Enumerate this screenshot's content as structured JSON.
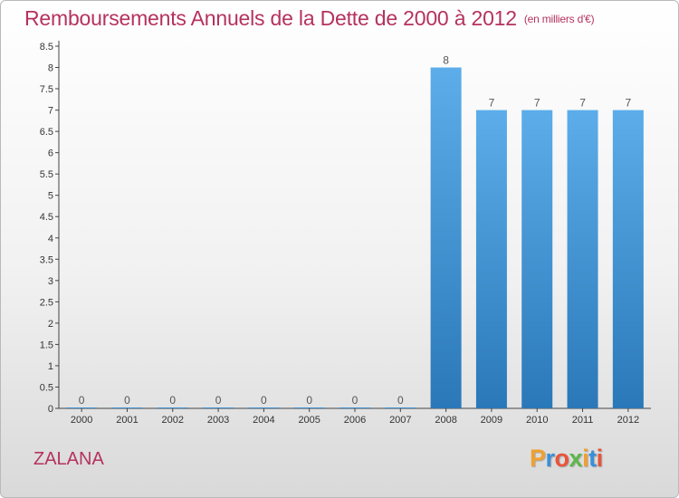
{
  "title": "Remboursements Annuels de la Dette de 2000 à 2012",
  "unit": "(en milliers d'€)",
  "place": "ZALANA",
  "logo": {
    "letters": [
      "P",
      "r",
      "o",
      "x",
      "i",
      "t",
      "i"
    ],
    "colors": [
      "#f0a030",
      "#3a8fd8",
      "#e8543a",
      "#5cb84a",
      "#f0a030",
      "#3a8fd8",
      "#e8543a"
    ]
  },
  "colors": {
    "bar_light": "#5cadea",
    "bar_dark": "#2a78b8",
    "title": "#b5325e"
  },
  "chart_data": {
    "type": "bar",
    "categories": [
      "2000",
      "2001",
      "2002",
      "2003",
      "2004",
      "2005",
      "2006",
      "2007",
      "2008",
      "2009",
      "2010",
      "2011",
      "2012"
    ],
    "values": [
      0,
      0,
      0,
      0,
      0,
      0,
      0,
      0,
      8,
      7,
      7,
      7,
      7
    ],
    "data_labels": [
      "0",
      "0",
      "0",
      "0",
      "0",
      "0",
      "0",
      "0",
      "8",
      "7",
      "7",
      "7",
      "7"
    ],
    "y_ticks": [
      0,
      0.5,
      1,
      1.5,
      2,
      2.5,
      3,
      3.5,
      4,
      4.5,
      5,
      5.5,
      6,
      6.5,
      7,
      7.5,
      8,
      8.5
    ],
    "y_tick_labels": [
      "0",
      "0.5",
      "1",
      "1.5",
      "2",
      "2.5",
      "3",
      "3.5",
      "4",
      "4.5",
      "5",
      "5.5",
      "6",
      "6.5",
      "7",
      "7.5",
      "8",
      "8.5"
    ],
    "ylim": [
      0,
      8.5
    ],
    "grid": false,
    "xlabel": "",
    "ylabel": ""
  }
}
